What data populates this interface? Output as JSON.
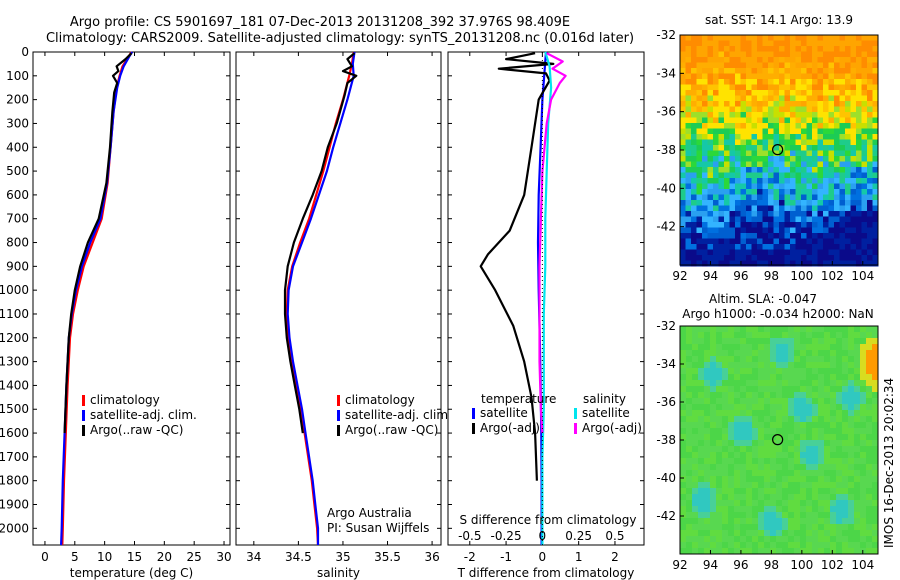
{
  "header": {
    "title_line1": "Argo profile: CS 5901697_181 07-Dec-2013 20131208_392 37.976S 98.409E",
    "title_line2": "Climatology: CARS2009. Satellite-adjusted climatology: synTS_20131208.nc (0.016d later)"
  },
  "credit": {
    "line1": "Argo Australia",
    "line2": "PI: Susan Wijffels"
  },
  "footer_stamp": "IMOS 16-Dec-2013 20:02:34",
  "colors": {
    "climatology": "#ff0000",
    "satellite": "#0000ff",
    "argo": "#000000",
    "sal_satellite": "#00e5ee",
    "sal_argo": "#ff00ff"
  },
  "chart_data": [
    {
      "type": "line",
      "id": "temperature",
      "xlabel": "temperature (deg C)",
      "xlim": [
        -2,
        31
      ],
      "xticks": [
        0,
        5,
        10,
        15,
        20,
        25,
        30
      ],
      "ylim": [
        0,
        2070
      ],
      "yticks": [
        0,
        100,
        200,
        300,
        400,
        500,
        600,
        700,
        800,
        900,
        1000,
        1100,
        1200,
        1300,
        1400,
        1500,
        1600,
        1700,
        1800,
        1900,
        2000
      ],
      "legend": [
        "climatology",
        "satellite-adj. clim.",
        "Argo(..raw -QC)"
      ],
      "series": [
        {
          "name": "climatology",
          "color": "#ff0000",
          "points": [
            [
              14.5,
              0
            ],
            [
              14.0,
              20
            ],
            [
              13.0,
              60
            ],
            [
              12.5,
              100
            ],
            [
              12.0,
              150
            ],
            [
              11.5,
              250
            ],
            [
              11.0,
              400
            ],
            [
              10.5,
              550
            ],
            [
              9.5,
              700
            ],
            [
              8.0,
              800
            ],
            [
              6.5,
              900
            ],
            [
              5.5,
              1000
            ],
            [
              4.7,
              1100
            ],
            [
              4.2,
              1200
            ],
            [
              3.8,
              1400
            ],
            [
              3.5,
              1600
            ],
            [
              3.2,
              1800
            ],
            [
              3.0,
              2000
            ],
            [
              2.9,
              2070
            ]
          ]
        },
        {
          "name": "satellite-adj. clim.",
          "color": "#0000ff",
          "points": [
            [
              14.6,
              0
            ],
            [
              14.1,
              20
            ],
            [
              13.2,
              60
            ],
            [
              12.6,
              100
            ],
            [
              12.1,
              150
            ],
            [
              11.5,
              250
            ],
            [
              11.0,
              400
            ],
            [
              10.4,
              550
            ],
            [
              9.3,
              700
            ],
            [
              7.6,
              800
            ],
            [
              6.2,
              900
            ],
            [
              5.2,
              1000
            ],
            [
              4.5,
              1100
            ],
            [
              4.0,
              1200
            ],
            [
              3.6,
              1400
            ],
            [
              3.3,
              1600
            ],
            [
              3.0,
              1800
            ],
            [
              2.8,
              2000
            ],
            [
              2.7,
              2070
            ]
          ]
        },
        {
          "name": "Argo(..raw -QC)",
          "color": "#000000",
          "points": [
            [
              14.5,
              5
            ],
            [
              13.5,
              30
            ],
            [
              12.0,
              60
            ],
            [
              12.3,
              80
            ],
            [
              11.4,
              100
            ],
            [
              12.1,
              130
            ],
            [
              11.6,
              170
            ],
            [
              11.3,
              250
            ],
            [
              10.9,
              400
            ],
            [
              10.3,
              550
            ],
            [
              9.0,
              700
            ],
            [
              7.2,
              800
            ],
            [
              5.9,
              900
            ],
            [
              5.0,
              1000
            ],
            [
              4.4,
              1100
            ],
            [
              4.0,
              1200
            ],
            [
              3.6,
              1400
            ],
            [
              3.3,
              1600
            ]
          ]
        }
      ]
    },
    {
      "type": "line",
      "id": "salinity",
      "xlabel": "salinity",
      "xlim": [
        33.8,
        36.1
      ],
      "xticks": [
        34,
        34.5,
        35,
        35.5,
        36
      ],
      "ylim": [
        0,
        2070
      ],
      "legend": [
        "climatology",
        "satellite-adj. clim.",
        "Argo(..raw -QC)"
      ],
      "series": [
        {
          "name": "climatology",
          "color": "#ff0000",
          "points": [
            [
              35.12,
              0
            ],
            [
              35.1,
              50
            ],
            [
              35.07,
              100
            ],
            [
              35.0,
              200
            ],
            [
              34.92,
              300
            ],
            [
              34.85,
              400
            ],
            [
              34.78,
              500
            ],
            [
              34.7,
              600
            ],
            [
              34.62,
              700
            ],
            [
              34.52,
              800
            ],
            [
              34.43,
              900
            ],
            [
              34.38,
              1000
            ],
            [
              34.37,
              1100
            ],
            [
              34.39,
              1200
            ],
            [
              34.43,
              1300
            ],
            [
              34.48,
              1400
            ],
            [
              34.53,
              1500
            ],
            [
              34.57,
              1600
            ],
            [
              34.61,
              1700
            ],
            [
              34.65,
              1800
            ],
            [
              34.68,
              1900
            ],
            [
              34.71,
              2000
            ],
            [
              34.72,
              2070
            ]
          ]
        },
        {
          "name": "satellite-adj. clim.",
          "color": "#0000ff",
          "points": [
            [
              35.13,
              0
            ],
            [
              35.11,
              50
            ],
            [
              35.12,
              100
            ],
            [
              35.05,
              200
            ],
            [
              34.97,
              300
            ],
            [
              34.89,
              400
            ],
            [
              34.82,
              500
            ],
            [
              34.73,
              600
            ],
            [
              34.64,
              700
            ],
            [
              34.54,
              800
            ],
            [
              34.44,
              900
            ],
            [
              34.39,
              1000
            ],
            [
              34.38,
              1100
            ],
            [
              34.4,
              1200
            ],
            [
              34.44,
              1300
            ],
            [
              34.49,
              1400
            ],
            [
              34.54,
              1500
            ],
            [
              34.58,
              1600
            ],
            [
              34.62,
              1700
            ],
            [
              34.66,
              1800
            ],
            [
              34.69,
              1900
            ],
            [
              34.72,
              2000
            ],
            [
              34.72,
              2070
            ]
          ]
        },
        {
          "name": "Argo(..raw -QC)",
          "color": "#000000",
          "points": [
            [
              35.13,
              5
            ],
            [
              35.05,
              30
            ],
            [
              35.1,
              60
            ],
            [
              35.0,
              80
            ],
            [
              35.15,
              100
            ],
            [
              35.05,
              130
            ],
            [
              35.02,
              180
            ],
            [
              34.93,
              300
            ],
            [
              34.83,
              400
            ],
            [
              34.76,
              500
            ],
            [
              34.66,
              600
            ],
            [
              34.55,
              700
            ],
            [
              34.45,
              800
            ],
            [
              34.38,
              900
            ],
            [
              34.35,
              1000
            ],
            [
              34.35,
              1100
            ],
            [
              34.37,
              1200
            ],
            [
              34.41,
              1300
            ],
            [
              34.46,
              1400
            ],
            [
              34.51,
              1500
            ],
            [
              34.55,
              1600
            ]
          ]
        }
      ]
    },
    {
      "type": "line",
      "id": "difference",
      "xlabel": "T difference from climatology",
      "xlabel_top": "S difference from climatology",
      "xlim": [
        -2.6,
        2.8
      ],
      "xticks": [
        -2,
        -1,
        0,
        1,
        2
      ],
      "xticks_top": [
        -0.5,
        -0.25,
        0,
        0.25,
        0.5
      ],
      "xtick_labels_top": [
        "-0.5",
        "-0.25",
        "0",
        "0.25",
        "0.5"
      ],
      "ylim": [
        0,
        2070
      ],
      "legend_temp_title": "temperature",
      "legend_sal_title": "salinity",
      "legend": [
        "satellite",
        "Argo(-adj)",
        "satellite",
        "Argo(-adj)"
      ],
      "series": [
        {
          "name": "T satellite",
          "color": "#0000ff",
          "points": [
            [
              0.1,
              0
            ],
            [
              0.05,
              100
            ],
            [
              0.0,
              200
            ],
            [
              -0.05,
              400
            ],
            [
              -0.1,
              600
            ],
            [
              -0.12,
              800
            ],
            [
              -0.1,
              1000
            ],
            [
              -0.07,
              1200
            ],
            [
              -0.05,
              1400
            ],
            [
              -0.03,
              1600
            ],
            [
              -0.02,
              1800
            ],
            [
              -0.02,
              2070
            ]
          ]
        },
        {
          "name": "T Argo(-adj)",
          "color": "#000000",
          "points": [
            [
              -0.2,
              5
            ],
            [
              -1.0,
              30
            ],
            [
              0.3,
              50
            ],
            [
              -1.2,
              70
            ],
            [
              0.1,
              90
            ],
            [
              0.2,
              120
            ],
            [
              -0.1,
              200
            ],
            [
              -0.2,
              300
            ],
            [
              -0.3,
              400
            ],
            [
              -0.5,
              600
            ],
            [
              -0.9,
              750
            ],
            [
              -1.5,
              850
            ],
            [
              -1.7,
              900
            ],
            [
              -1.3,
              1000
            ],
            [
              -0.8,
              1150
            ],
            [
              -0.5,
              1300
            ],
            [
              -0.3,
              1450
            ],
            [
              -0.2,
              1600
            ],
            [
              -0.15,
              1800
            ]
          ]
        },
        {
          "name": "S satellite",
          "color": "#00e5ee",
          "points": [
            [
              0.02,
              0
            ],
            [
              0.05,
              60
            ],
            [
              0.06,
              150
            ],
            [
              0.04,
              300
            ],
            [
              0.03,
              500
            ],
            [
              0.02,
              700
            ],
            [
              0.02,
              900
            ],
            [
              0.01,
              1100
            ],
            [
              0.01,
              1300
            ],
            [
              0.01,
              1500
            ],
            [
              0.0,
              1700
            ],
            [
              0.0,
              1900
            ],
            [
              0.0,
              2070
            ]
          ]
        },
        {
          "name": "S Argo(-adj)",
          "color": "#ff00ff",
          "points": [
            [
              0.03,
              5
            ],
            [
              0.14,
              40
            ],
            [
              0.07,
              70
            ],
            [
              0.16,
              100
            ],
            [
              0.12,
              130
            ],
            [
              0.06,
              200
            ],
            [
              0.03,
              300
            ],
            [
              0.0,
              500
            ],
            [
              -0.01,
              700
            ],
            [
              -0.02,
              900
            ],
            [
              -0.02,
              1100
            ],
            [
              -0.02,
              1300
            ],
            [
              -0.01,
              1500
            ],
            [
              0.0,
              1600
            ]
          ]
        }
      ]
    },
    {
      "type": "heatmap",
      "id": "sst_map",
      "title": "sat. SST: 14.1  Argo: 13.9",
      "xlim": [
        92,
        105
      ],
      "ylim": [
        -44,
        -32
      ],
      "xticks": [
        92,
        94,
        96,
        98,
        100,
        102,
        104
      ],
      "yticks": [
        -32,
        -34,
        -36,
        -38,
        -40,
        -42
      ],
      "argo_position": [
        98.41,
        -37.98
      ]
    },
    {
      "type": "heatmap",
      "id": "sla_map",
      "title_line1": "Altim. SLA: -0.047",
      "title_line2": "Argo h1000: -0.034  h2000: NaN",
      "xlim": [
        92,
        105
      ],
      "ylim": [
        -44,
        -32
      ],
      "xticks": [
        92,
        94,
        96,
        98,
        100,
        102,
        104
      ],
      "yticks": [
        -32,
        -34,
        -36,
        -38,
        -40,
        -42
      ],
      "argo_position": [
        98.41,
        -37.98
      ]
    }
  ]
}
